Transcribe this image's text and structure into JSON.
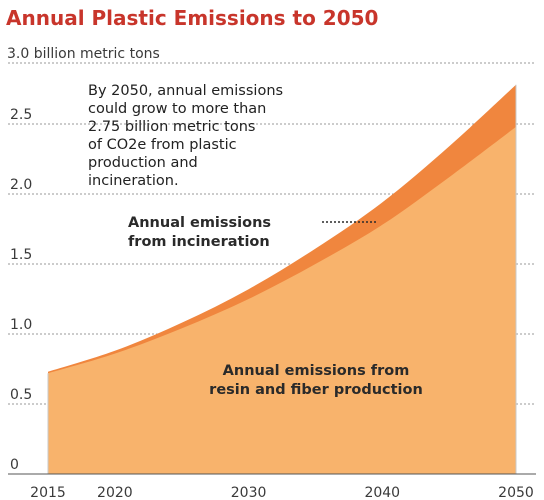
{
  "chart_data": {
    "type": "area",
    "title": "Annual Plastic Emissions to 2050",
    "unit_label": "3.0 billion metric tons",
    "x": [
      2015,
      2020,
      2025,
      2030,
      2035,
      2040,
      2045,
      2050
    ],
    "xticks": [
      "2015",
      "2020",
      "2030",
      "2040",
      "2050"
    ],
    "yticks": [
      "0",
      "0.5",
      "1.0",
      "1.5",
      "2.0",
      "2.5"
    ],
    "ylim": [
      0,
      3.0
    ],
    "xlim": [
      2015,
      2050
    ],
    "grid": true,
    "series": [
      {
        "name": "Annual emissions from resin and fiber production",
        "values": [
          0.72,
          0.86,
          1.04,
          1.25,
          1.5,
          1.78,
          2.12,
          2.48
        ],
        "color": "#f8b36c"
      },
      {
        "name": "Annual emissions from incineration",
        "values": [
          0.01,
          0.02,
          0.04,
          0.07,
          0.11,
          0.16,
          0.22,
          0.3
        ],
        "color": "#f0863e"
      }
    ],
    "annotation": [
      "By 2050, annual emissions",
      "could grow to more than",
      "2.75 billion metric tons",
      "of CO2e from plastic",
      "production and",
      "incineration."
    ],
    "label_production": [
      "Annual emissions from",
      "resin and fiber production"
    ],
    "label_incineration": [
      "Annual emissions",
      "from incineration"
    ]
  }
}
